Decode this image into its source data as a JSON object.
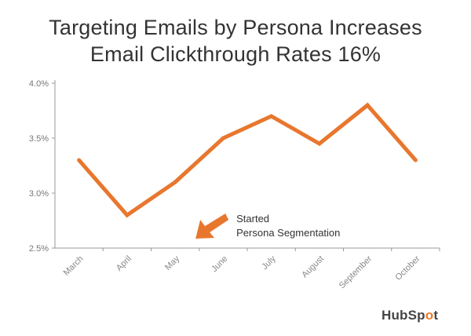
{
  "chart_data": {
    "type": "line",
    "title_line1": "Targeting Emails by Persona Increases",
    "title_line2": "Email Clickthrough Rates 16%",
    "xlabel": "",
    "ylabel": "",
    "categories": [
      "March",
      "April",
      "May",
      "June",
      "July",
      "August",
      "September",
      "October"
    ],
    "series": [
      {
        "values": [
          3.3,
          2.8,
          3.1,
          3.5,
          3.7,
          3.45,
          3.8,
          3.3
        ]
      }
    ],
    "ylim": [
      2.5,
      4.0
    ],
    "y_ticks": [
      "4.0%",
      "3.5%",
      "3.0%",
      "2.5%"
    ],
    "y_tick_values": [
      4.0,
      3.5,
      3.0,
      2.5
    ],
    "grid": false,
    "line_color": "#e8772e",
    "annotation": {
      "line1": "Started",
      "line2": "Persona Segmentation",
      "points_to": "May"
    }
  },
  "branding": {
    "prefix": "HubSp",
    "o": "o",
    "suffix": "t"
  }
}
